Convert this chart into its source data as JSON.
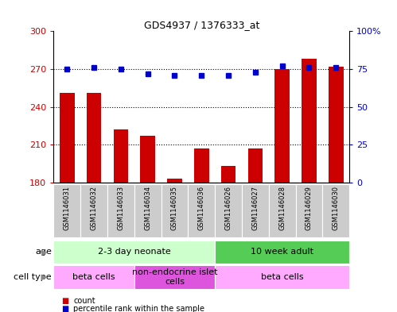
{
  "title": "GDS4937 / 1376333_at",
  "samples": [
    "GSM1146031",
    "GSM1146032",
    "GSM1146033",
    "GSM1146034",
    "GSM1146035",
    "GSM1146036",
    "GSM1146026",
    "GSM1146027",
    "GSM1146028",
    "GSM1146029",
    "GSM1146030"
  ],
  "counts": [
    251,
    251,
    222,
    217,
    183,
    207,
    193,
    207,
    270,
    278,
    272
  ],
  "percentiles": [
    75,
    76,
    75,
    72,
    71,
    71,
    71,
    73,
    77,
    76,
    76
  ],
  "ylim_left": [
    180,
    300
  ],
  "ylim_right": [
    0,
    100
  ],
  "yticks_left": [
    180,
    210,
    240,
    270,
    300
  ],
  "yticks_right": [
    0,
    25,
    50,
    75,
    100
  ],
  "ytick_labels_right": [
    "0",
    "25",
    "50",
    "75",
    "100%"
  ],
  "bar_color": "#cc0000",
  "dot_color": "#0000cc",
  "age_groups": [
    {
      "label": "2-3 day neonate",
      "start": 0,
      "end": 5,
      "color": "#ccffcc"
    },
    {
      "label": "10 week adult",
      "start": 6,
      "end": 10,
      "color": "#55cc55"
    }
  ],
  "cell_groups": [
    {
      "label": "beta cells",
      "start": 0,
      "end": 2,
      "color": "#ffaaff"
    },
    {
      "label": "non-endocrine islet\ncells",
      "start": 3,
      "end": 5,
      "color": "#dd77dd"
    },
    {
      "label": "beta cells",
      "start": 6,
      "end": 10,
      "color": "#ffaaff"
    }
  ],
  "legend_count_label": "count",
  "legend_percentile_label": "percentile rank within the sample",
  "age_label": "age",
  "cell_type_label": "cell type",
  "background_color": "#ffffff",
  "plot_bg": "#ffffff",
  "grid_color": "#000000",
  "tick_label_color_left": "#cc0000",
  "tick_label_color_right": "#0000cc",
  "label_box_color": "#cccccc"
}
